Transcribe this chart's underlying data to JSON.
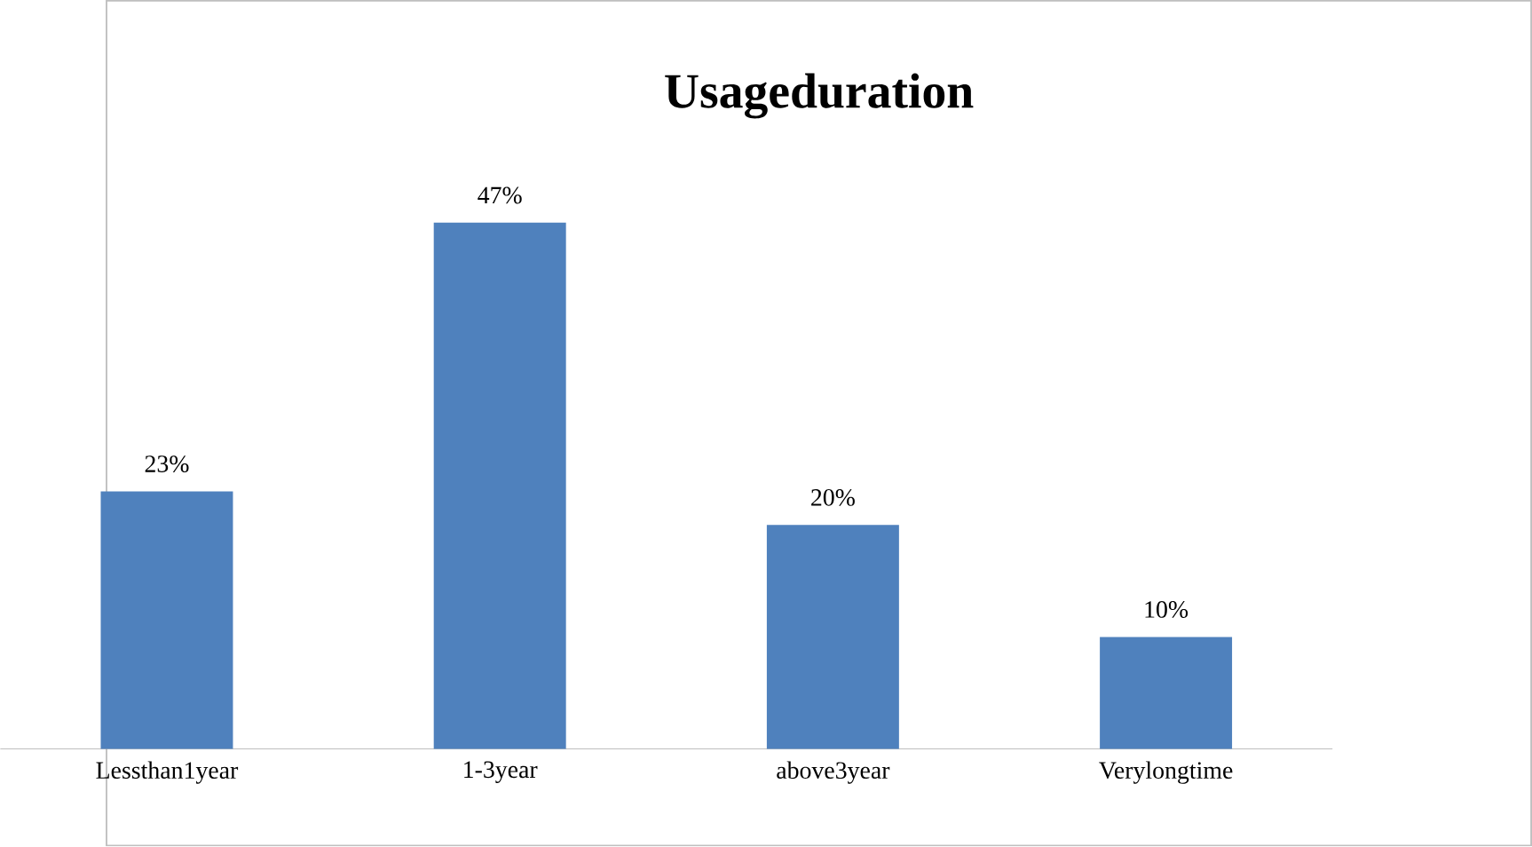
{
  "chart_data": {
    "type": "bar",
    "title": "Usageduration",
    "categories": [
      "Lessthan1year",
      "1-3year",
      "above3year",
      "Verylongtime"
    ],
    "values": [
      23,
      47,
      20,
      10
    ],
    "value_labels": [
      "23%",
      "47%",
      "20%",
      "10%"
    ],
    "color": "#4f81bd"
  }
}
